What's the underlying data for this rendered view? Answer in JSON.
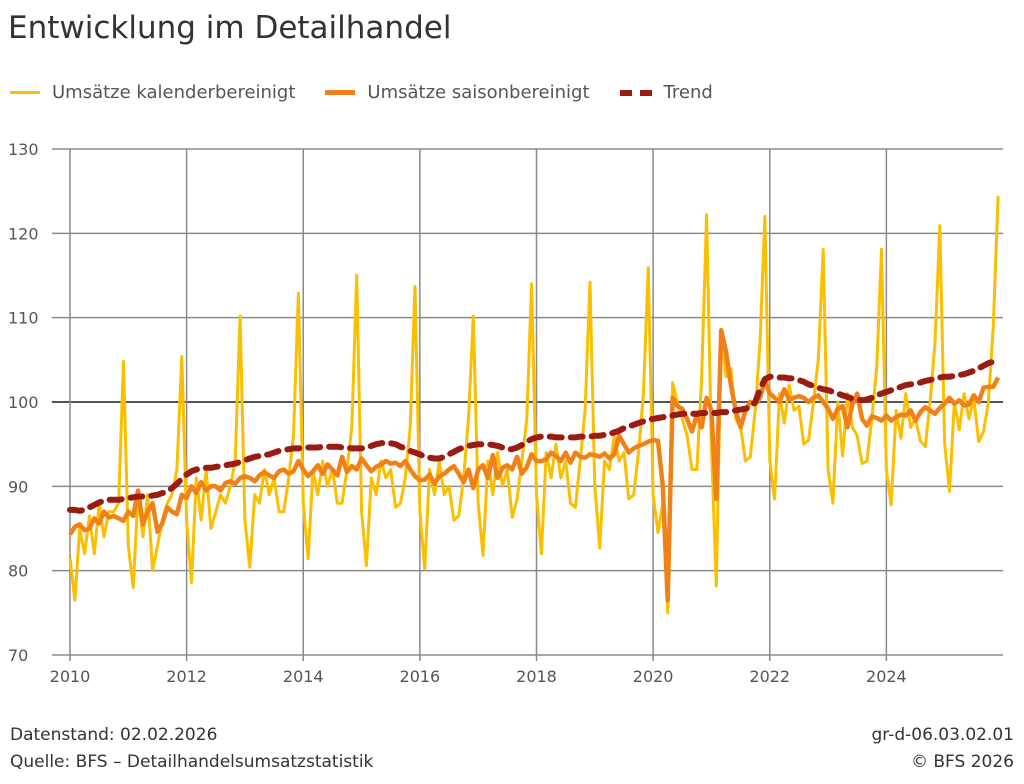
{
  "title": "Entwicklung im Detailhandel",
  "footer": {
    "datenstand": "Datenstand: 02.02.2026",
    "quelle": "Quelle: BFS – Detailhandelsumsatzstatistik",
    "code": "gr-d-06.03.02.01",
    "copyright": "© BFS 2026"
  },
  "chart_data": {
    "type": "line",
    "title": "Entwicklung im Detailhandel",
    "xlabel": "",
    "ylabel": "",
    "x_start": "2010-01",
    "frequency": "monthly",
    "xlim": [
      2010,
      2026
    ],
    "ylim": [
      70,
      130
    ],
    "x_ticks": [
      "2010",
      "2012",
      "2014",
      "2016",
      "2018",
      "2020",
      "2022",
      "2024"
    ],
    "y_ticks": [
      "70",
      "80",
      "90",
      "100",
      "110",
      "120",
      "130"
    ],
    "grid": true,
    "legend": "top",
    "series": [
      {
        "name": "Umsätze kalenderbereinigt",
        "color": "#fbbf00",
        "style": "solid",
        "values": [
          81.5,
          76.5,
          85,
          82,
          86.5,
          82,
          88,
          84,
          87,
          87,
          88,
          104.8,
          83,
          78,
          89,
          84,
          89,
          80,
          83,
          86,
          88,
          89,
          92,
          105.4,
          86,
          78.6,
          91,
          86,
          92,
          85,
          87,
          89,
          88,
          90,
          93,
          110.2,
          86,
          80.4,
          89,
          88,
          92,
          89,
          91,
          87,
          87,
          91,
          96,
          112.9,
          88,
          81.4,
          92,
          89,
          93,
          90,
          92,
          88,
          88,
          92,
          97,
          115,
          87,
          80.6,
          91,
          89,
          93,
          91,
          92,
          87.5,
          88,
          91,
          97,
          113.7,
          87,
          80.2,
          92,
          89,
          93,
          89,
          90,
          86,
          86.5,
          91,
          98,
          110.2,
          88,
          81.8,
          93,
          89,
          94,
          90,
          92,
          86.3,
          88.5,
          93,
          98,
          114,
          89,
          82,
          94,
          91,
          95,
          91,
          93,
          88,
          87.5,
          93,
          99,
          114.2,
          90,
          82.7,
          93,
          92,
          96,
          93,
          94,
          88.5,
          89,
          94,
          101,
          115.9,
          89,
          84.5,
          88,
          75,
          102.3,
          100,
          98,
          96,
          92,
          92,
          103,
          122.2,
          95,
          78.2,
          108.6,
          103,
          104,
          98,
          97,
          93,
          93.5,
          99,
          107,
          122,
          93,
          88.5,
          101,
          97.5,
          102,
          99,
          99.5,
          95,
          95.5,
          100,
          105,
          118.1,
          92,
          88,
          100,
          93.6,
          101,
          97,
          96,
          92.7,
          93,
          98,
          104,
          118.1,
          92,
          87.8,
          99,
          95.7,
          101,
          97,
          98,
          95.4,
          94.7,
          100,
          107,
          120.9,
          95,
          89.4,
          100,
          96.7,
          101,
          98,
          100.5,
          95.3,
          96.5,
          100,
          109,
          124.4
        ]
      },
      {
        "name": "Umsätze saisonbereinigt",
        "color": "#f08119",
        "style": "solid",
        "values": [
          84.3,
          85.2,
          85.5,
          84.8,
          85,
          86.2,
          85.6,
          87,
          86.3,
          86.5,
          86.2,
          85.9,
          87,
          86.5,
          89.5,
          85.5,
          87,
          88,
          84.6,
          85.6,
          87.5,
          87,
          86.7,
          89,
          88.6,
          90,
          89.2,
          90.5,
          89.5,
          90,
          90,
          89.5,
          90.4,
          90.6,
          90.3,
          91,
          91.2,
          91,
          90.6,
          91.3,
          91.7,
          91.3,
          91,
          91.8,
          92,
          91.5,
          91.8,
          93,
          92,
          91.2,
          91.8,
          92.5,
          91.5,
          92.6,
          92,
          91.3,
          93.5,
          91.7,
          92.4,
          92,
          93.3,
          92.5,
          91.8,
          92.3,
          92.6,
          93,
          92.7,
          92.8,
          92.4,
          93,
          92,
          91.2,
          90.7,
          90.8,
          91.4,
          90.3,
          91.2,
          91.5,
          92,
          92.4,
          91.5,
          90.5,
          92,
          89.8,
          92,
          92.5,
          91,
          93.7,
          91,
          92.2,
          92.5,
          92,
          93.5,
          91.5,
          92.3,
          93.8,
          93,
          93,
          93.2,
          94,
          93.6,
          93,
          94,
          92.8,
          94,
          93.5,
          93.4,
          93.8,
          93.7,
          93.5,
          93.9,
          93.3,
          93.8,
          96,
          95,
          94,
          94.5,
          94.8,
          95,
          95.3,
          95.5,
          95.4,
          90,
          76.5,
          100.5,
          99.5,
          99.2,
          98,
          96.5,
          98.5,
          97,
          100.5,
          99,
          88.5,
          108.5,
          106,
          102,
          99,
          97,
          99,
          100,
          99.7,
          100.5,
          102.5,
          101,
          100.5,
          100,
          101.5,
          100.3,
          100.5,
          100.7,
          100.5,
          100,
          100.5,
          100.8,
          100,
          99.2,
          98,
          99.2,
          99.5,
          97,
          99.7,
          101,
          98,
          97.2,
          98.3,
          98.1,
          97.8,
          98.4,
          97.8,
          98.2,
          98.5,
          98.4,
          99,
          97.8,
          98.8,
          99.4,
          99,
          98.6,
          99.3,
          99.8,
          100.5,
          99.8,
          100.2,
          99.6,
          99.7,
          100.8,
          100,
          101.7,
          101.8,
          101.8,
          102.9
        ]
      },
      {
        "name": "Trend",
        "color": "#9b1b12",
        "style": "dashed",
        "values": [
          87.2,
          87.2,
          87.1,
          87.2,
          87.5,
          87.8,
          88.1,
          88.3,
          88.4,
          88.4,
          88.4,
          88.5,
          88.6,
          88.7,
          88.8,
          88.8,
          88.8,
          88.9,
          89,
          89.2,
          89.4,
          89.8,
          90.3,
          90.9,
          91.4,
          91.8,
          92,
          92.1,
          92.2,
          92.2,
          92.3,
          92.4,
          92.5,
          92.6,
          92.7,
          92.9,
          93.1,
          93.3,
          93.5,
          93.6,
          93.7,
          93.8,
          94,
          94.2,
          94.3,
          94.4,
          94.5,
          94.5,
          94.6,
          94.6,
          94.6,
          94.6,
          94.7,
          94.7,
          94.7,
          94.7,
          94.6,
          94.6,
          94.5,
          94.5,
          94.5,
          94.6,
          94.8,
          95,
          95.1,
          95.2,
          95.1,
          95,
          94.7,
          94.5,
          94.2,
          94,
          93.8,
          93.5,
          93.4,
          93.3,
          93.3,
          93.5,
          93.8,
          94.1,
          94.4,
          94.6,
          94.8,
          94.9,
          95,
          95,
          95,
          94.9,
          94.8,
          94.6,
          94.4,
          94.4,
          94.6,
          94.9,
          95.3,
          95.6,
          95.8,
          95.9,
          95.9,
          95.9,
          95.8,
          95.8,
          95.8,
          95.8,
          95.8,
          95.9,
          95.9,
          95.9,
          96,
          96,
          96.1,
          96.2,
          96.4,
          96.6,
          96.9,
          97.1,
          97.3,
          97.5,
          97.7,
          97.9,
          98,
          98.1,
          98.2,
          98.3,
          98.4,
          98.5,
          98.6,
          98.6,
          98.6,
          98.6,
          98.7,
          98.7,
          98.7,
          98.7,
          98.8,
          98.8,
          98.9,
          99,
          99.1,
          99.2,
          99.4,
          100,
          101.5,
          102.7,
          103,
          103,
          102.9,
          102.9,
          102.8,
          102.8,
          102.6,
          102.4,
          102.1,
          101.9,
          101.7,
          101.5,
          101.4,
          101.2,
          101,
          100.8,
          100.6,
          100.4,
          100.3,
          100.2,
          100.3,
          100.5,
          100.8,
          101,
          101.2,
          101.4,
          101.6,
          101.8,
          102,
          102.1,
          102.2,
          102.3,
          102.5,
          102.6,
          102.8,
          102.9,
          103,
          103,
          103.1,
          103.2,
          103.3,
          103.5,
          103.7,
          104,
          104.3,
          104.6,
          104.8
        ]
      }
    ]
  }
}
